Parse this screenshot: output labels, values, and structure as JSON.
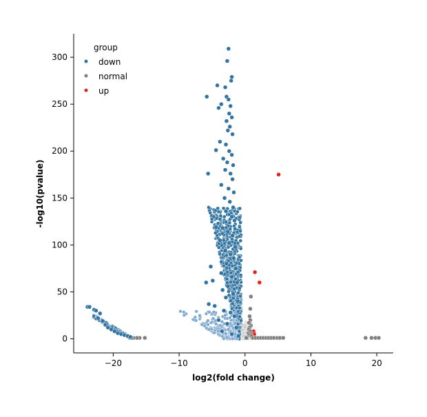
{
  "chart_data": {
    "type": "scatter",
    "xlabel": "log2(fold change)",
    "ylabel": "-log10(pvalue)",
    "xlim": [
      -26,
      22.5
    ],
    "ylim": [
      -15,
      325
    ],
    "xticks": [
      -20,
      -10,
      0,
      10,
      20
    ],
    "yticks": [
      0,
      50,
      100,
      150,
      200,
      250,
      300
    ],
    "grid": false,
    "legend": {
      "title": "group",
      "placement": "top-left",
      "entries": [
        {
          "name": "down",
          "color": "#3274a1"
        },
        {
          "name": "normal",
          "color": "#7f7f7f"
        },
        {
          "name": "up",
          "color": "#e3221c"
        }
      ]
    },
    "series": [
      {
        "name": "up",
        "color": "#e3221c",
        "points": [
          [
            5.1,
            175
          ],
          [
            1.5,
            71
          ],
          [
            2.2,
            60
          ],
          [
            1.3,
            8
          ],
          [
            1.4,
            5
          ]
        ]
      },
      {
        "name": "normal",
        "color": "#7f7f7f",
        "points": [
          [
            0.9,
            45
          ],
          [
            0.8,
            32
          ],
          [
            0.7,
            24
          ],
          [
            0.8,
            20
          ],
          [
            0.6,
            17
          ],
          [
            0.9,
            14
          ],
          [
            0.7,
            12
          ],
          [
            0.6,
            10
          ],
          [
            0.8,
            8
          ],
          [
            0.5,
            6
          ],
          [
            0.9,
            5
          ],
          [
            0.6,
            4
          ],
          [
            1.0,
            3
          ],
          [
            0.4,
            2
          ],
          [
            0.3,
            1
          ],
          [
            0.2,
            1
          ],
          [
            1.2,
            1
          ],
          [
            1.6,
            1
          ],
          [
            2.0,
            1
          ],
          [
            2.4,
            1
          ],
          [
            2.8,
            1
          ],
          [
            3.2,
            1
          ],
          [
            3.6,
            1
          ],
          [
            4.0,
            1
          ],
          [
            4.4,
            1
          ],
          [
            4.9,
            1
          ],
          [
            5.3,
            1
          ],
          [
            5.8,
            1
          ],
          [
            18.3,
            1
          ],
          [
            19.2,
            1
          ],
          [
            19.8,
            1
          ],
          [
            20.3,
            1
          ],
          [
            -15.2,
            1
          ],
          [
            -16.0,
            1
          ],
          [
            -16.4,
            1
          ],
          [
            -16.9,
            1
          ],
          [
            -17.2,
            1
          ]
        ]
      },
      {
        "name": "down",
        "color": "#3274a1",
        "points": [
          [
            -2.5,
            309
          ],
          [
            -2.7,
            296
          ],
          [
            -2.0,
            279
          ],
          [
            -2.1,
            275
          ],
          [
            -4.2,
            270
          ],
          [
            -3.0,
            268
          ],
          [
            -5.8,
            258
          ],
          [
            -2.8,
            258
          ],
          [
            -3.6,
            250
          ],
          [
            -4.0,
            246
          ],
          [
            -2.5,
            255
          ],
          [
            -2.2,
            248
          ],
          [
            -2.4,
            240
          ],
          [
            -2.0,
            236
          ],
          [
            -2.8,
            232
          ],
          [
            -2.3,
            226
          ],
          [
            -2.6,
            222
          ],
          [
            -1.9,
            218
          ],
          [
            -3.8,
            210
          ],
          [
            -4.4,
            201
          ],
          [
            -2.9,
            207
          ],
          [
            -2.4,
            200
          ],
          [
            -2.0,
            196
          ],
          [
            -3.3,
            192
          ],
          [
            -2.7,
            188
          ],
          [
            -1.8,
            185
          ],
          [
            -5.6,
            176
          ],
          [
            -3.0,
            180
          ],
          [
            -2.2,
            176
          ],
          [
            -1.9,
            170
          ],
          [
            -3.6,
            164
          ],
          [
            -2.5,
            160
          ],
          [
            -1.7,
            156
          ],
          [
            -3.1,
            150
          ],
          [
            -2.3,
            146
          ],
          [
            -1.8,
            140
          ],
          [
            -2.9,
            136
          ],
          [
            -4.4,
            119
          ],
          [
            -2.0,
            130
          ],
          [
            -1.6,
            126
          ],
          [
            -3.4,
            118
          ],
          [
            -2.6,
            114
          ],
          [
            -1.9,
            110
          ],
          [
            -3.8,
            105
          ],
          [
            -2.4,
            102
          ],
          [
            -1.5,
            98
          ],
          [
            -3.0,
            94
          ],
          [
            -2.2,
            90
          ],
          [
            -5.2,
            77
          ],
          [
            -1.7,
            86
          ],
          [
            -2.8,
            80
          ],
          [
            -1.4,
            75
          ],
          [
            -3.6,
            70
          ],
          [
            -2.0,
            66
          ],
          [
            -5.9,
            60
          ],
          [
            -4.9,
            62
          ],
          [
            -1.2,
            60
          ],
          [
            -2.6,
            56
          ],
          [
            -3.4,
            52
          ],
          [
            -1.8,
            48
          ],
          [
            -2.9,
            44
          ],
          [
            -1.1,
            40
          ],
          [
            -5.5,
            37
          ],
          [
            -4.6,
            35
          ],
          [
            -3.2,
            30
          ],
          [
            -2.2,
            28
          ],
          [
            -1.6,
            24
          ],
          [
            -4.0,
            20
          ],
          [
            -2.7,
            16
          ],
          [
            -1.3,
            12
          ],
          [
            -3.5,
            8
          ],
          [
            -2.0,
            5
          ],
          [
            -1.0,
            3
          ],
          [
            -23.9,
            34
          ],
          [
            -23.6,
            34
          ],
          [
            -22.9,
            31
          ],
          [
            -22.6,
            30
          ],
          [
            -22.0,
            27
          ],
          [
            -22.3,
            22
          ],
          [
            -21.6,
            19
          ],
          [
            -21.2,
            15
          ],
          [
            -20.8,
            12
          ],
          [
            -20.3,
            10
          ],
          [
            -19.8,
            8
          ],
          [
            -19.3,
            6
          ],
          [
            -18.8,
            5
          ],
          [
            -18.3,
            4
          ],
          [
            -17.8,
            3
          ],
          [
            -17.4,
            2
          ]
        ]
      }
    ]
  }
}
